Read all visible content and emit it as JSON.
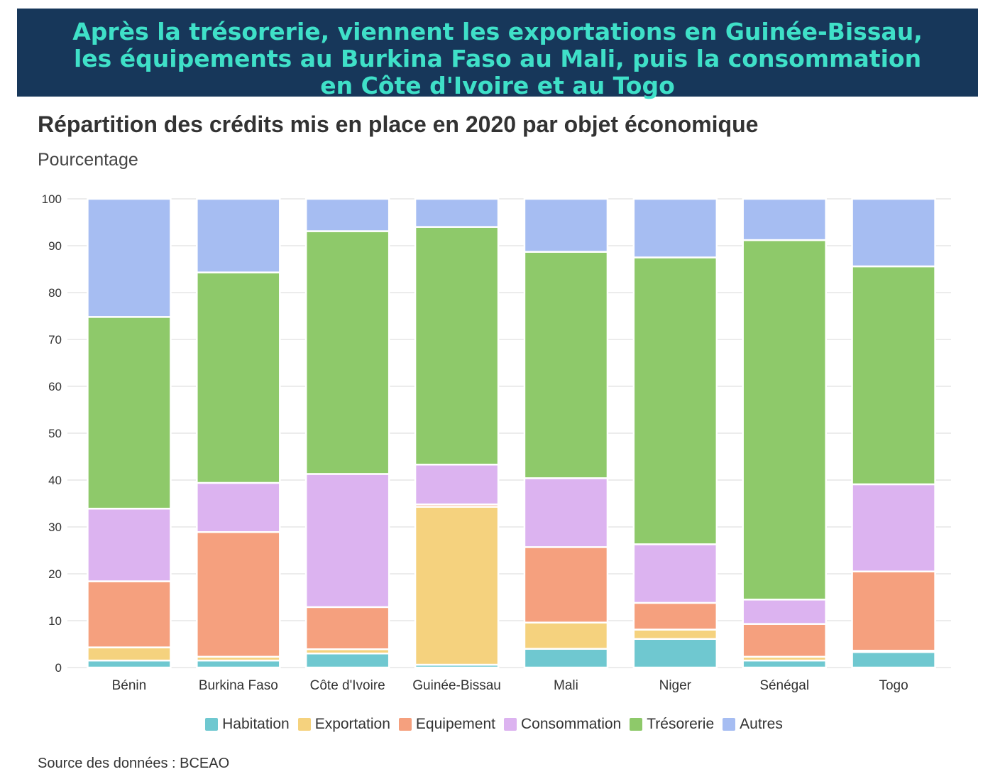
{
  "banner": {
    "line1": "Après la trésorerie, viennent les exportations en Guinée-Bissau,",
    "line2": "les équipements au Burkina Faso au Mali,  puis la consommation",
    "line3": "en Côte d'Ivoire et au Togo"
  },
  "chart_data": {
    "type": "bar",
    "stacked": true,
    "title": "Répartition des crédits mis en place en 2020 par objet économique",
    "subtitle": "Pourcentage",
    "ylim": [
      0,
      100
    ],
    "yticks": [
      "0",
      "10",
      "20",
      "30",
      "40",
      "50",
      "60",
      "70",
      "80",
      "90",
      "100"
    ],
    "grid": true,
    "legend_position": "bottom",
    "categories": [
      "Bénin",
      "Burkina Faso",
      "Côte d'Ivoire",
      "Guinée-Bissau",
      "Mali",
      "Niger",
      "Sénégal",
      "Togo"
    ],
    "series": [
      {
        "name": "Habitation",
        "color": "#6fc8d0",
        "values": [
          1.5,
          1.5,
          3.0,
          0.6,
          4.0,
          6.1,
          1.5,
          3.3
        ]
      },
      {
        "name": "Exportation",
        "color": "#f5d27e",
        "values": [
          2.8,
          0.8,
          0.9,
          33.7,
          5.6,
          2.0,
          0.8,
          0.3
        ]
      },
      {
        "name": "Equipement",
        "color": "#f5a07e",
        "values": [
          14.1,
          26.6,
          9.0,
          0.5,
          16.1,
          5.7,
          7.0,
          16.9
        ]
      },
      {
        "name": "Consommation",
        "color": "#dcb3f0",
        "values": [
          15.5,
          10.5,
          28.4,
          8.5,
          14.7,
          12.5,
          5.2,
          18.6
        ]
      },
      {
        "name": "Trésorerie",
        "color": "#8ec96a",
        "values": [
          40.9,
          44.9,
          51.8,
          50.7,
          48.3,
          61.2,
          76.7,
          46.5
        ]
      },
      {
        "name": "Autres",
        "color": "#a6bdf2",
        "values": [
          25.2,
          15.7,
          6.9,
          6.0,
          11.3,
          12.5,
          8.8,
          14.4
        ]
      }
    ]
  },
  "source": "Source des données : BCEAO"
}
